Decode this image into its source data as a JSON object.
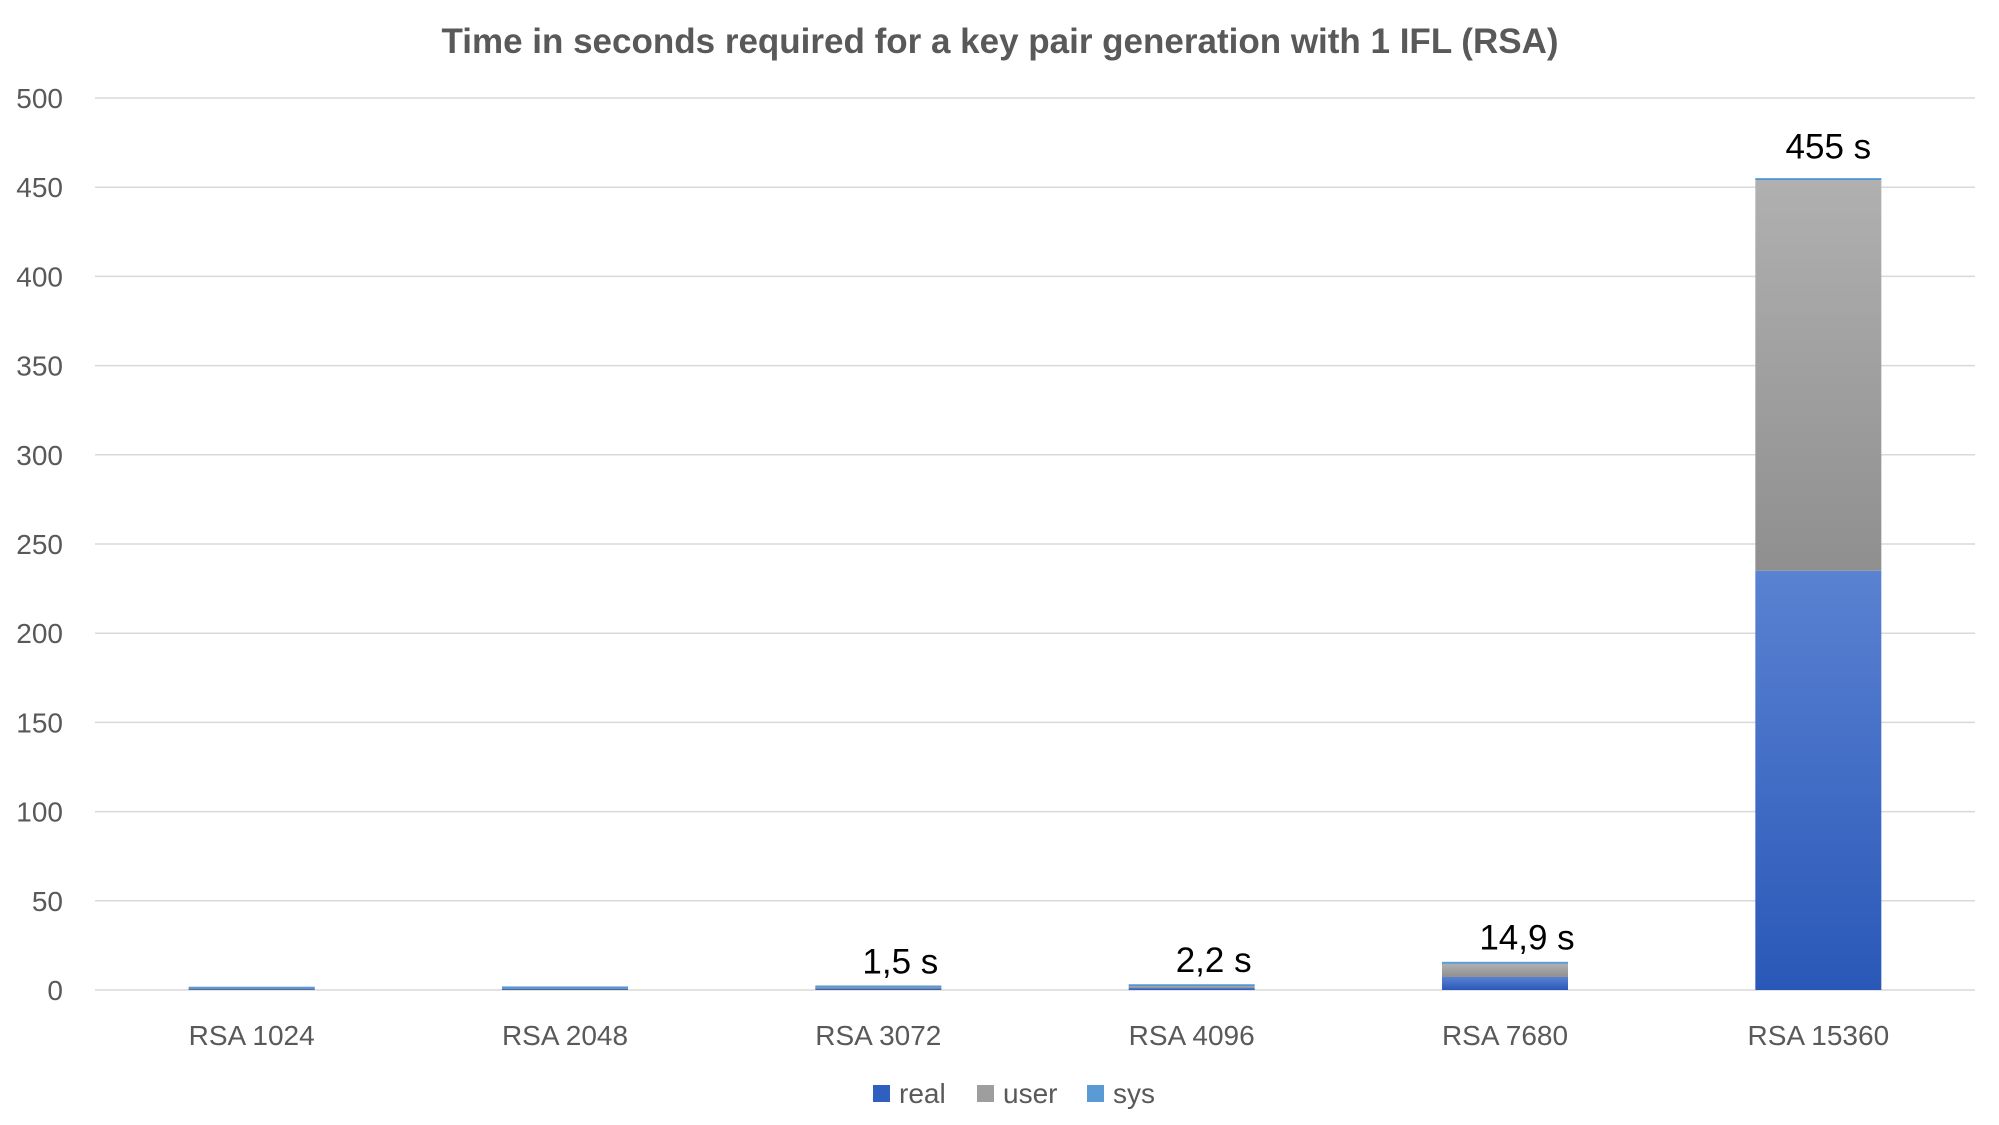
{
  "chart_data": {
    "type": "bar",
    "stacked": true,
    "title": "Time in seconds required for a key pair generation with 1 IFL (RSA)",
    "xlabel": "",
    "ylabel": "",
    "categories": [
      "RSA 1024",
      "RSA 2048",
      "RSA 3072",
      "RSA 4096",
      "RSA 7680",
      "RSA 15360"
    ],
    "series": [
      {
        "name": "real",
        "color": "#2f5fbf",
        "values": [
          0.4,
          0.5,
          0.75,
          1.1,
          7.3,
          235
        ]
      },
      {
        "name": "user",
        "color": "#9e9e9e",
        "values": [
          0.35,
          0.4,
          0.7,
          1.05,
          7.4,
          219
        ]
      },
      {
        "name": "sys",
        "color": "#5b9bd5",
        "values": [
          0.05,
          0.05,
          0.05,
          0.05,
          0.2,
          1
        ]
      }
    ],
    "data_labels": [
      "",
      "",
      "1,5 s",
      "2,2 s",
      "14,9 s",
      "455 s"
    ],
    "ylim": [
      0,
      500
    ],
    "yticks": [
      0,
      50,
      100,
      150,
      200,
      250,
      300,
      350,
      400,
      450,
      500
    ],
    "grid": true,
    "legend": "bottom"
  }
}
